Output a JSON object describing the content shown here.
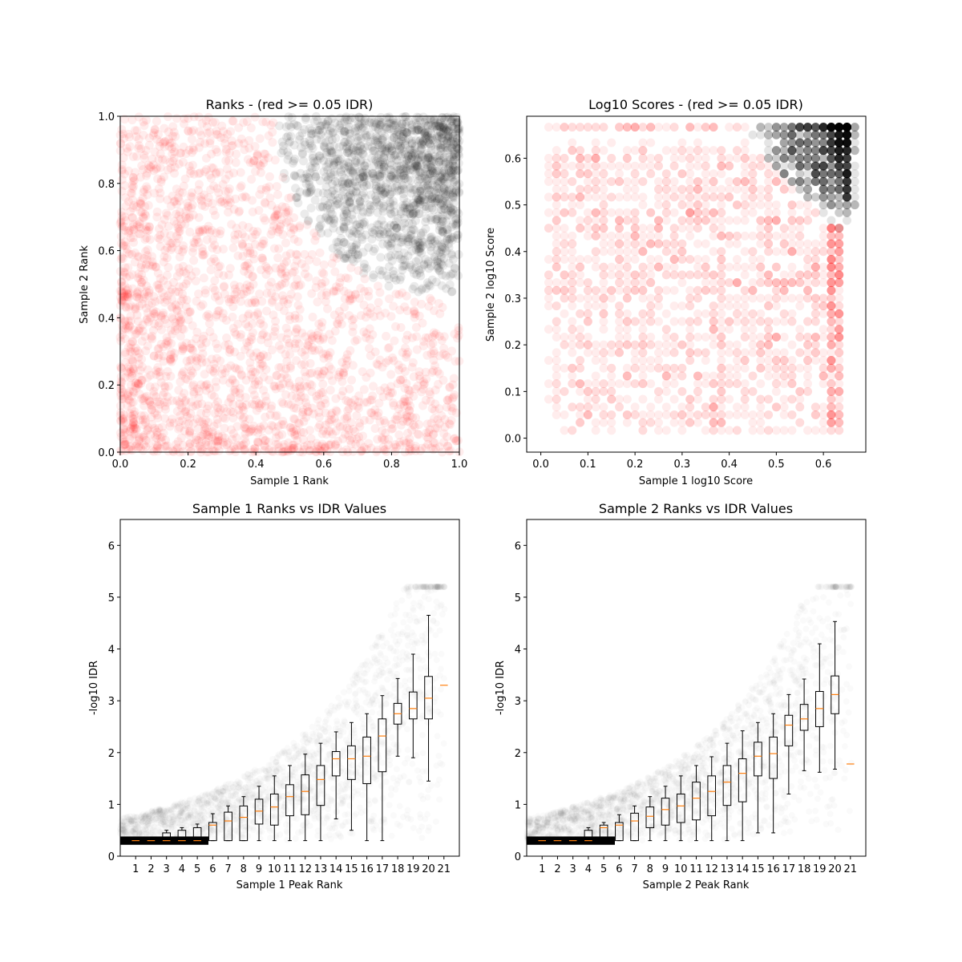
{
  "chart_data": [
    {
      "type": "scatter",
      "title": "Ranks - (red >= 0.05 IDR)",
      "xlabel": "Sample 1 Rank",
      "ylabel": "Sample 2 Rank",
      "xlim": [
        0,
        1
      ],
      "ylim": [
        0,
        1
      ],
      "xticks": [
        "0.0",
        "0.2",
        "0.4",
        "0.6",
        "0.8",
        "1.0"
      ],
      "yticks": [
        "0.0",
        "0.2",
        "0.4",
        "0.6",
        "0.8",
        "1.0"
      ],
      "grid": false,
      "colors": {
        "pass": "#000000",
        "fail": "#ff0000"
      },
      "threshold_note": "red >= 0.05 IDR",
      "series": [
        {
          "color": "black",
          "region": "upper-right, x+y above ~1.3 arc",
          "approx_points": 1500
        },
        {
          "color": "red",
          "region": "remainder, densest near origin",
          "approx_points": 2600
        }
      ]
    },
    {
      "type": "scatter",
      "title": "Log10 Scores - (red >= 0.05 IDR)",
      "xlabel": "Sample 1 log10 Score",
      "ylabel": "Sample 2 log10 Score",
      "xlim": [
        -0.03,
        0.69
      ],
      "ylim": [
        -0.03,
        0.69
      ],
      "xticks": [
        "0.0",
        "0.1",
        "0.2",
        "0.3",
        "0.4",
        "0.5",
        "0.6"
      ],
      "yticks": [
        "0.0",
        "0.1",
        "0.2",
        "0.3",
        "0.4",
        "0.5",
        "0.6"
      ],
      "grid": false,
      "colors": {
        "pass": "#000000",
        "fail": "#ff0000"
      },
      "series": [
        {
          "color": "black",
          "region": "x and y both above ~0.45, cap at 0.66",
          "approx_points": 900
        },
        {
          "color": "red",
          "region": "0.01 to 0.63 grid-quantized",
          "approx_points": 2000
        }
      ]
    },
    {
      "type": "box",
      "title": "Sample 1 Ranks vs IDR Values",
      "xlabel": "Sample 1 Peak Rank",
      "ylabel": "-log10 IDR",
      "ylim": [
        0,
        6.5
      ],
      "categories": [
        "1",
        "2",
        "3",
        "4",
        "5",
        "6",
        "7",
        "8",
        "9",
        "10",
        "11",
        "12",
        "13",
        "14",
        "15",
        "16",
        "17",
        "18",
        "19",
        "20",
        "21"
      ],
      "yticks": [
        "0",
        "1",
        "2",
        "3",
        "4",
        "5",
        "6"
      ],
      "boxes": [
        {
          "lo": 0.3,
          "q1": 0.3,
          "med": 0.3,
          "q3": 0.3,
          "hi": 0.3
        },
        {
          "lo": 0.3,
          "q1": 0.3,
          "med": 0.3,
          "q3": 0.3,
          "hi": 0.3
        },
        {
          "lo": 0.3,
          "q1": 0.3,
          "med": 0.3,
          "q3": 0.45,
          "hi": 0.5
        },
        {
          "lo": 0.3,
          "q1": 0.3,
          "med": 0.3,
          "q3": 0.5,
          "hi": 0.55
        },
        {
          "lo": 0.3,
          "q1": 0.3,
          "med": 0.3,
          "q3": 0.55,
          "hi": 0.62
        },
        {
          "lo": 0.3,
          "q1": 0.3,
          "med": 0.6,
          "q3": 0.65,
          "hi": 0.82
        },
        {
          "lo": 0.3,
          "q1": 0.3,
          "med": 0.68,
          "q3": 0.85,
          "hi": 0.97
        },
        {
          "lo": 0.3,
          "q1": 0.3,
          "med": 0.75,
          "q3": 0.97,
          "hi": 1.15
        },
        {
          "lo": 0.3,
          "q1": 0.62,
          "med": 0.87,
          "q3": 1.1,
          "hi": 1.35
        },
        {
          "lo": 0.3,
          "q1": 0.6,
          "med": 0.95,
          "q3": 1.2,
          "hi": 1.55
        },
        {
          "lo": 0.3,
          "q1": 0.78,
          "med": 1.15,
          "q3": 1.38,
          "hi": 1.75
        },
        {
          "lo": 0.3,
          "q1": 0.8,
          "med": 1.25,
          "q3": 1.57,
          "hi": 1.97
        },
        {
          "lo": 0.3,
          "q1": 0.98,
          "med": 1.48,
          "q3": 1.75,
          "hi": 2.18
        },
        {
          "lo": 0.72,
          "q1": 1.55,
          "med": 1.88,
          "q3": 2.02,
          "hi": 2.4
        },
        {
          "lo": 0.5,
          "q1": 1.48,
          "med": 1.88,
          "q3": 2.13,
          "hi": 2.58
        },
        {
          "lo": 0.3,
          "q1": 1.4,
          "med": 1.93,
          "q3": 2.3,
          "hi": 2.75
        },
        {
          "lo": 0.3,
          "q1": 1.63,
          "med": 2.32,
          "q3": 2.65,
          "hi": 3.1
        },
        {
          "lo": 1.93,
          "q1": 2.55,
          "med": 2.75,
          "q3": 2.95,
          "hi": 3.43
        },
        {
          "lo": 1.9,
          "q1": 2.65,
          "med": 2.85,
          "q3": 3.17,
          "hi": 3.9
        },
        {
          "lo": 1.45,
          "q1": 2.65,
          "med": 3.05,
          "q3": 3.47,
          "hi": 4.65
        }
      ],
      "outlier_median": {
        "x": 21,
        "y": 3.3
      }
    },
    {
      "type": "box",
      "title": "Sample 2 Ranks vs IDR Values",
      "xlabel": "Sample 2 Peak Rank",
      "ylabel": "-log10 IDR",
      "ylim": [
        0,
        6.5
      ],
      "categories": [
        "1",
        "2",
        "3",
        "4",
        "5",
        "6",
        "7",
        "8",
        "9",
        "10",
        "11",
        "12",
        "13",
        "14",
        "15",
        "16",
        "17",
        "18",
        "19",
        "20",
        "21"
      ],
      "yticks": [
        "0",
        "1",
        "2",
        "3",
        "4",
        "5",
        "6"
      ],
      "boxes": [
        {
          "lo": 0.3,
          "q1": 0.3,
          "med": 0.3,
          "q3": 0.3,
          "hi": 0.3
        },
        {
          "lo": 0.3,
          "q1": 0.3,
          "med": 0.3,
          "q3": 0.3,
          "hi": 0.3
        },
        {
          "lo": 0.3,
          "q1": 0.3,
          "med": 0.3,
          "q3": 0.3,
          "hi": 0.3
        },
        {
          "lo": 0.3,
          "q1": 0.3,
          "med": 0.3,
          "q3": 0.5,
          "hi": 0.55
        },
        {
          "lo": 0.3,
          "q1": 0.3,
          "med": 0.55,
          "q3": 0.6,
          "hi": 0.65
        },
        {
          "lo": 0.3,
          "q1": 0.3,
          "med": 0.6,
          "q3": 0.65,
          "hi": 0.8
        },
        {
          "lo": 0.3,
          "q1": 0.3,
          "med": 0.68,
          "q3": 0.83,
          "hi": 0.97
        },
        {
          "lo": 0.3,
          "q1": 0.55,
          "med": 0.77,
          "q3": 0.95,
          "hi": 1.15
        },
        {
          "lo": 0.3,
          "q1": 0.6,
          "med": 0.9,
          "q3": 1.12,
          "hi": 1.35
        },
        {
          "lo": 0.3,
          "q1": 0.65,
          "med": 0.97,
          "q3": 1.2,
          "hi": 1.55
        },
        {
          "lo": 0.3,
          "q1": 0.7,
          "med": 1.12,
          "q3": 1.43,
          "hi": 1.75
        },
        {
          "lo": 0.3,
          "q1": 0.78,
          "med": 1.25,
          "q3": 1.55,
          "hi": 1.92
        },
        {
          "lo": 0.3,
          "q1": 0.98,
          "med": 1.43,
          "q3": 1.75,
          "hi": 2.18
        },
        {
          "lo": 0.3,
          "q1": 1.05,
          "med": 1.6,
          "q3": 1.88,
          "hi": 2.42
        },
        {
          "lo": 0.45,
          "q1": 1.55,
          "med": 1.93,
          "q3": 2.2,
          "hi": 2.58
        },
        {
          "lo": 0.45,
          "q1": 1.5,
          "med": 1.98,
          "q3": 2.3,
          "hi": 2.75
        },
        {
          "lo": 1.2,
          "q1": 2.13,
          "med": 2.53,
          "q3": 2.72,
          "hi": 3.12
        },
        {
          "lo": 1.65,
          "q1": 2.43,
          "med": 2.65,
          "q3": 2.93,
          "hi": 3.42
        },
        {
          "lo": 1.62,
          "q1": 2.5,
          "med": 2.85,
          "q3": 3.18,
          "hi": 4.1
        },
        {
          "lo": 1.68,
          "q1": 2.75,
          "med": 3.12,
          "q3": 3.48,
          "hi": 4.53
        }
      ],
      "outlier_median": {
        "x": 21,
        "y": 1.78
      }
    }
  ]
}
